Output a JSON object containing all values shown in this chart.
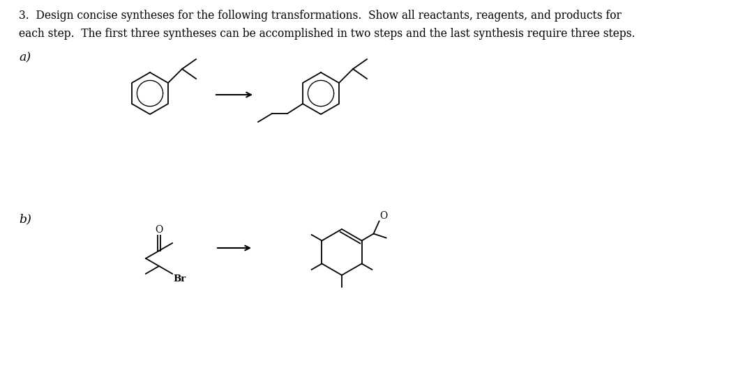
{
  "title_line1": "3.  Design concise syntheses for the following transformations.  Show all reactants, reagents, and products for",
  "title_line2": "each step.  The first three syntheses can be accomplished in two steps and the last synthesis require three steps.",
  "label_a": "a)",
  "label_b": "b)",
  "bg_color": "#ffffff",
  "text_color": "#000000",
  "font_size_text": 11.2,
  "font_size_label": 12.5
}
